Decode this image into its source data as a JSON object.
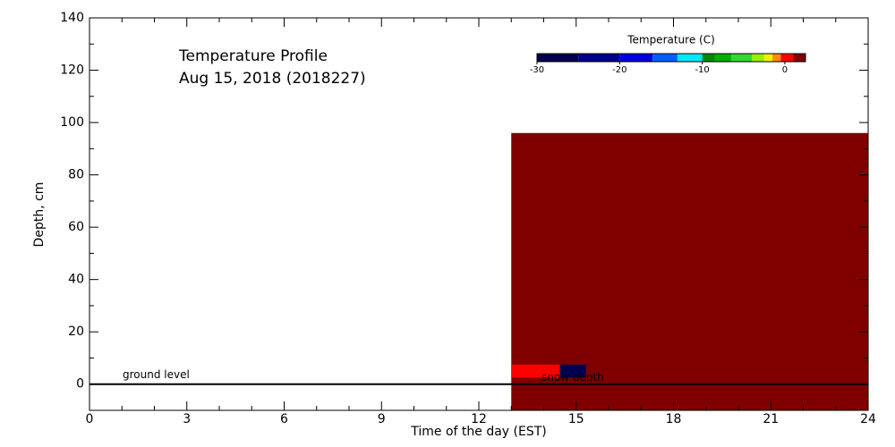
{
  "chart_data": {
    "type": "heatmap",
    "title": "Temperature Profile",
    "subtitle": "Aug 15, 2018 (2018227)",
    "x_label": "Time of the day (EST)",
    "y_label": "Depth, cm",
    "xlim": [
      0,
      24
    ],
    "xticks": [
      0,
      3,
      6,
      9,
      12,
      15,
      18,
      21,
      24
    ],
    "ylim": [
      -10,
      140
    ],
    "yticks": [
      0,
      20,
      40,
      60,
      80,
      100,
      120,
      140
    ],
    "colorbar": {
      "title": "Temperature (C)",
      "bounds": [
        -30,
        -25,
        -20,
        -16,
        -13,
        -10,
        -8.5,
        -6.5,
        -4,
        -2.5,
        -1.5,
        -0.5,
        1,
        2.5
      ],
      "colors": [
        "#000050",
        "#000090",
        "#0000e0",
        "#0060ff",
        "#00e8ff",
        "#008800",
        "#00b000",
        "#30d830",
        "#98f000",
        "#f0f000",
        "#ff8c00",
        "#ff0000",
        "#800000"
      ],
      "ticks": [
        -30,
        -20,
        -10,
        0
      ]
    },
    "cells": [
      {
        "x": [
          13,
          24
        ],
        "y": [
          -10,
          96
        ],
        "value": 2
      },
      {
        "x": [
          13,
          14.5
        ],
        "y": [
          2.5,
          7.5
        ],
        "value": 0
      },
      {
        "x": [
          14.5,
          15.3
        ],
        "y": [
          2.5,
          7.5
        ],
        "value": -28
      }
    ],
    "ground_level": {
      "label": "ground level",
      "y": 0
    },
    "snow_depth": {
      "label": "snow depth"
    }
  }
}
